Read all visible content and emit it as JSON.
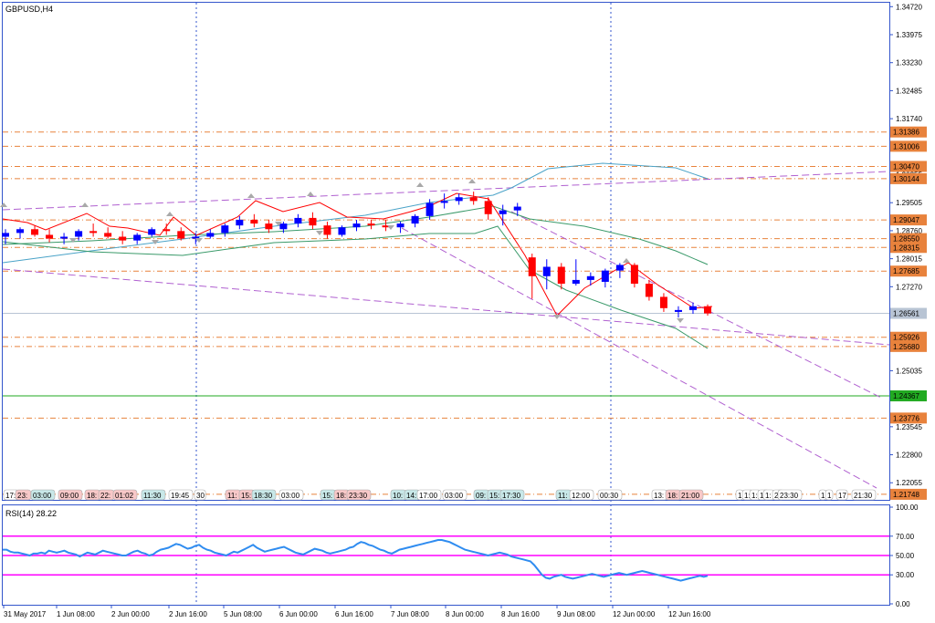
{
  "window": {
    "title": "GBPUSD,H4"
  },
  "price_axis": {
    "ticks": [
      "1.34720",
      "1.33975",
      "1.33230",
      "1.32485",
      "1.31740",
      "1.30255",
      "1.29505",
      "1.28760",
      "1.28015",
      "1.27270",
      "1.25035",
      "1.23545",
      "1.22800",
      "1.22055"
    ]
  },
  "level_tags": [
    {
      "text": "1.31386",
      "price": 1.31386,
      "color": "#e8823c"
    },
    {
      "text": "1.31006",
      "price": 1.31006,
      "color": "#e8823c"
    },
    {
      "text": "1.30470",
      "price": 1.3047,
      "color": "#e8823c"
    },
    {
      "text": "1.30144",
      "price": 1.30144,
      "color": "#e8823c"
    },
    {
      "text": "1.29047",
      "price": 1.29047,
      "color": "#e8823c"
    },
    {
      "text": "1.28550",
      "price": 1.2855,
      "color": "#e8823c"
    },
    {
      "text": "1.28315",
      "price": 1.28315,
      "color": "#e8823c"
    },
    {
      "text": "1.27685",
      "price": 1.27685,
      "color": "#e8823c"
    },
    {
      "text": "1.26561",
      "price": 1.26561,
      "color": "#b8c4d4"
    },
    {
      "text": "1.25926",
      "price": 1.25926,
      "color": "#e8823c"
    },
    {
      "text": "1.25680",
      "price": 1.2568,
      "color": "#e8823c"
    },
    {
      "text": "1.24367",
      "price": 1.24367,
      "color": "#22aa22"
    },
    {
      "text": "1.23776",
      "price": 1.23776,
      "color": "#e8823c"
    },
    {
      "text": "1.21748",
      "price": 1.21748,
      "color": "#e8823c"
    }
  ],
  "event_labels": [
    "17:",
    "23:",
    "03:00",
    "09:00",
    "18:",
    "22:",
    "01:02",
    "11:30",
    "19:45",
    "30",
    "11:",
    "15:",
    "18:30",
    "03:00",
    "15:",
    "18:",
    "23:30",
    "10:",
    "14:",
    "17:00",
    "03:00",
    "09:",
    "15:",
    "17:30",
    "11:",
    "12:00",
    "00:30",
    "13:",
    "18:",
    "21:00",
    "1",
    "1:",
    "1:",
    "15",
    "1:",
    "20",
    "23:30",
    "1",
    "1",
    "17",
    "21:30"
  ],
  "time_axis": {
    "labels": [
      "31 May 2017",
      "1 Jun 08:00",
      "2 Jun 00:00",
      "2 Jun 16:00",
      "5 Jun 08:00",
      "6 Jun 00:00",
      "6 Jun 16:00",
      "7 Jun 08:00",
      "8 Jun 00:00",
      "8 Jun 16:00",
      "9 Jun 08:00",
      "12 Jun 00:00",
      "12 Jun 16:00"
    ]
  },
  "rsi": {
    "title": "RSI(14) 28.22",
    "ticks": [
      "100.00",
      "70.00",
      "50.00",
      "30.00",
      "0.00"
    ],
    "levels": [
      70,
      50,
      30
    ],
    "values": [
      56,
      56,
      54,
      53,
      53,
      52,
      51,
      50,
      52,
      52,
      53,
      52,
      55,
      54,
      53,
      54,
      55,
      53,
      52,
      51,
      49,
      51,
      53,
      52,
      51,
      53,
      55,
      54,
      53,
      52,
      51,
      50,
      50,
      52,
      54,
      55,
      53,
      52,
      50,
      51,
      54,
      56,
      57,
      58,
      60,
      62,
      61,
      59,
      57,
      58,
      60,
      61,
      58,
      56,
      55,
      53,
      52,
      51,
      50,
      52,
      54,
      53,
      55,
      57,
      59,
      61,
      58,
      56,
      54,
      55,
      56,
      57,
      58,
      59,
      57,
      55,
      53,
      52,
      51,
      53,
      55,
      57,
      56,
      55,
      53,
      52,
      53,
      54,
      55,
      56,
      58,
      59,
      62,
      64,
      63,
      61,
      60,
      58,
      56,
      55,
      53,
      52,
      54,
      56,
      57,
      58,
      59,
      60,
      61,
      62,
      63,
      64,
      65,
      66,
      66,
      65,
      64,
      62,
      60,
      58,
      56,
      55,
      54,
      53,
      52,
      51,
      50,
      51,
      52,
      53,
      52,
      51,
      49,
      48,
      47,
      46,
      45,
      44,
      40,
      35,
      30,
      27,
      26,
      28,
      29,
      30,
      28,
      27,
      26,
      27,
      28,
      29,
      30,
      31,
      30,
      29,
      28,
      29,
      30,
      31,
      32,
      31,
      30,
      31,
      32,
      33,
      34,
      33,
      32,
      31,
      30,
      29,
      28,
      27,
      26,
      25,
      24,
      25,
      26,
      27,
      28,
      29,
      28,
      29
    ]
  },
  "chart_data": {
    "type": "candlestick",
    "symbol": "GBPUSD,H4",
    "ylim": [
      1.216,
      1.348
    ],
    "candles": [
      [
        1.286,
        1.288,
        1.284,
        1.287
      ],
      [
        1.287,
        1.2885,
        1.2855,
        1.288
      ],
      [
        1.288,
        1.289,
        1.286,
        1.2865
      ],
      [
        1.2865,
        1.288,
        1.2845,
        1.2855
      ],
      [
        1.2855,
        1.287,
        1.284,
        1.286
      ],
      [
        1.286,
        1.288,
        1.285,
        1.2875
      ],
      [
        1.2875,
        1.2895,
        1.286,
        1.287
      ],
      [
        1.287,
        1.2885,
        1.2855,
        1.286
      ],
      [
        1.286,
        1.2875,
        1.284,
        1.285
      ],
      [
        1.285,
        1.287,
        1.284,
        1.2865
      ],
      [
        1.2865,
        1.2885,
        1.286,
        1.288
      ],
      [
        1.288,
        1.2895,
        1.2865,
        1.2875
      ],
      [
        1.2875,
        1.2885,
        1.285,
        1.2855
      ],
      [
        1.2855,
        1.287,
        1.284,
        1.286
      ],
      [
        1.286,
        1.288,
        1.2855,
        1.287
      ],
      [
        1.287,
        1.2895,
        1.286,
        1.289
      ],
      [
        1.289,
        1.2915,
        1.288,
        1.2905
      ],
      [
        1.2905,
        1.292,
        1.2885,
        1.2895
      ],
      [
        1.2895,
        1.2905,
        1.287,
        1.288
      ],
      [
        1.288,
        1.29,
        1.287,
        1.2895
      ],
      [
        1.2895,
        1.292,
        1.2885,
        1.291
      ],
      [
        1.291,
        1.2925,
        1.288,
        1.289
      ],
      [
        1.289,
        1.29,
        1.2855,
        1.2865
      ],
      [
        1.2865,
        1.289,
        1.286,
        1.2885
      ],
      [
        1.2885,
        1.2905,
        1.2875,
        1.2895
      ],
      [
        1.2895,
        1.2905,
        1.288,
        1.289
      ],
      [
        1.289,
        1.2905,
        1.2875,
        1.2885
      ],
      [
        1.2885,
        1.29,
        1.287,
        1.2895
      ],
      [
        1.2895,
        1.292,
        1.2885,
        1.2915
      ],
      [
        1.2915,
        1.296,
        1.2905,
        1.295
      ],
      [
        1.295,
        1.2975,
        1.2935,
        1.2955
      ],
      [
        1.2955,
        1.2975,
        1.2945,
        1.2965
      ],
      [
        1.2965,
        1.298,
        1.2945,
        1.2955
      ],
      [
        1.2955,
        1.2965,
        1.2905,
        1.292
      ],
      [
        1.292,
        1.2945,
        1.289,
        1.293
      ],
      [
        1.293,
        1.295,
        1.2915,
        1.294
      ],
      [
        1.2805,
        1.2815,
        1.2695,
        1.2755
      ],
      [
        1.2755,
        1.28,
        1.272,
        1.278
      ],
      [
        1.278,
        1.279,
        1.272,
        1.2735
      ],
      [
        1.2735,
        1.28,
        1.273,
        1.2745
      ],
      [
        1.2745,
        1.2765,
        1.273,
        1.2755
      ],
      [
        1.274,
        1.2775,
        1.2725,
        1.277
      ],
      [
        1.277,
        1.279,
        1.275,
        1.2785
      ],
      [
        1.2785,
        1.279,
        1.2725,
        1.2735
      ],
      [
        1.2735,
        1.2745,
        1.269,
        1.27
      ],
      [
        1.27,
        1.271,
        1.266,
        1.267
      ],
      [
        1.266,
        1.2675,
        1.2645,
        1.2665
      ],
      [
        1.2665,
        1.2685,
        1.2655,
        1.2675
      ],
      [
        1.2675,
        1.268,
        1.265,
        1.2656
      ]
    ]
  },
  "colors": {
    "bull": "#0000ff",
    "bear": "#ff0000",
    "frame": "#3355cc",
    "fib": "#e07040",
    "rsi": "#2f8cf0",
    "rsi_level": "#ff00ff"
  }
}
